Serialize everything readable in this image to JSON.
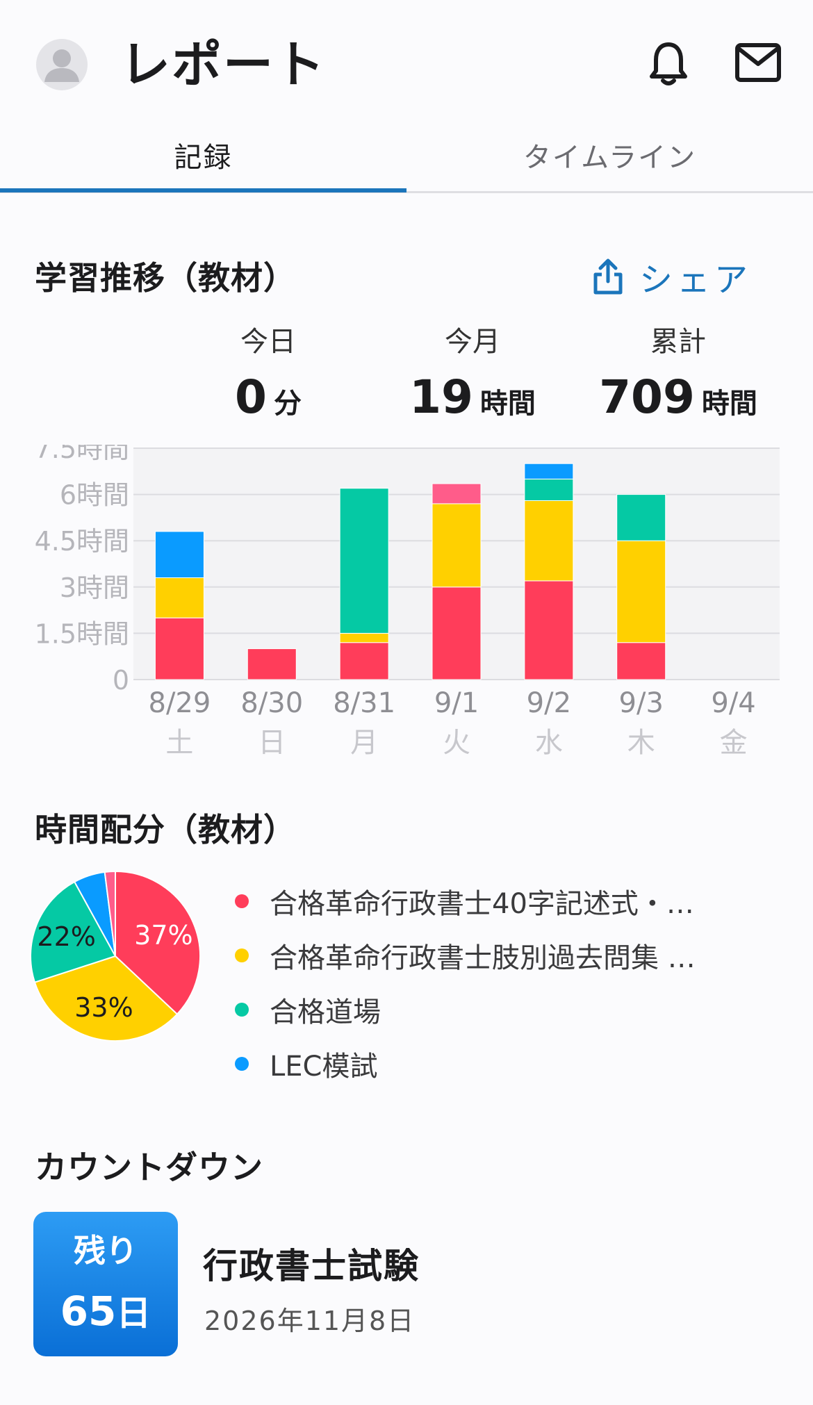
{
  "header": {
    "title": "レポート",
    "icons": [
      "avatar-icon",
      "bell-icon",
      "mail-icon"
    ]
  },
  "tabs": [
    {
      "label": "記録",
      "active": true
    },
    {
      "label": "タイムライン",
      "active": false
    }
  ],
  "accent_color": "#1b75bb",
  "study_trend": {
    "title": "学習推移（教材）",
    "share_label": "シェア",
    "stats": [
      {
        "label": "今日",
        "value": "0",
        "unit": "分"
      },
      {
        "label": "今月",
        "value": "19",
        "unit": "時間"
      },
      {
        "label": "累計",
        "value": "709",
        "unit": "時間"
      }
    ]
  },
  "chart_data": [
    {
      "type": "bar",
      "stacked": true,
      "categories": [
        "8/29",
        "8/30",
        "8/31",
        "9/1",
        "9/2",
        "9/3",
        "9/4"
      ],
      "weekdays": [
        "土",
        "日",
        "月",
        "火",
        "水",
        "木",
        "金"
      ],
      "y_ticks": [
        "0",
        "1.5時間",
        "3時間",
        "4.5時間",
        "6時間",
        "7.5時間"
      ],
      "ylim": [
        0,
        7.5
      ],
      "grid": true,
      "series": [
        {
          "color": "#ff3d5a",
          "values": [
            2.0,
            1.0,
            1.2,
            3.0,
            3.2,
            1.2,
            0
          ]
        },
        {
          "color": "#ffd000",
          "values": [
            1.3,
            0,
            0.3,
            2.7,
            2.6,
            3.3,
            0
          ]
        },
        {
          "color": "#05c9a4",
          "values": [
            0,
            0,
            4.7,
            0,
            0.7,
            1.5,
            0
          ]
        },
        {
          "color": "#0a9bff",
          "values": [
            1.5,
            0,
            0,
            0,
            0.5,
            0,
            0
          ]
        },
        {
          "color": "#ff5c8a",
          "values": [
            0,
            0,
            0,
            0.65,
            0,
            0,
            0
          ]
        }
      ]
    },
    {
      "type": "pie",
      "slices": [
        {
          "value": 37,
          "label": "37%",
          "color": "#ff3d5a"
        },
        {
          "value": 33,
          "label": "33%",
          "color": "#ffd000"
        },
        {
          "value": 22,
          "label": "22%",
          "color": "#05c9a4"
        },
        {
          "value": 6,
          "label": "",
          "color": "#0a9bff"
        },
        {
          "value": 2,
          "label": "",
          "color": "#ff5c8a"
        }
      ]
    }
  ],
  "time_allocation": {
    "title": "時間配分（教材）",
    "legend": [
      {
        "label": "合格革命行政書士40字記述式・…",
        "color": "#ff3d5a"
      },
      {
        "label": "合格革命行政書士肢別過去問集 …",
        "color": "#ffd000"
      },
      {
        "label": "合格道場",
        "color": "#05c9a4"
      },
      {
        "label": "LEC模試",
        "color": "#0a9bff"
      }
    ]
  },
  "countdown": {
    "title": "カウントダウン",
    "badge_label": "残り",
    "days": "65",
    "days_unit": "日",
    "exam_name": "行政書士試験",
    "exam_date": "2026年11月8日"
  }
}
